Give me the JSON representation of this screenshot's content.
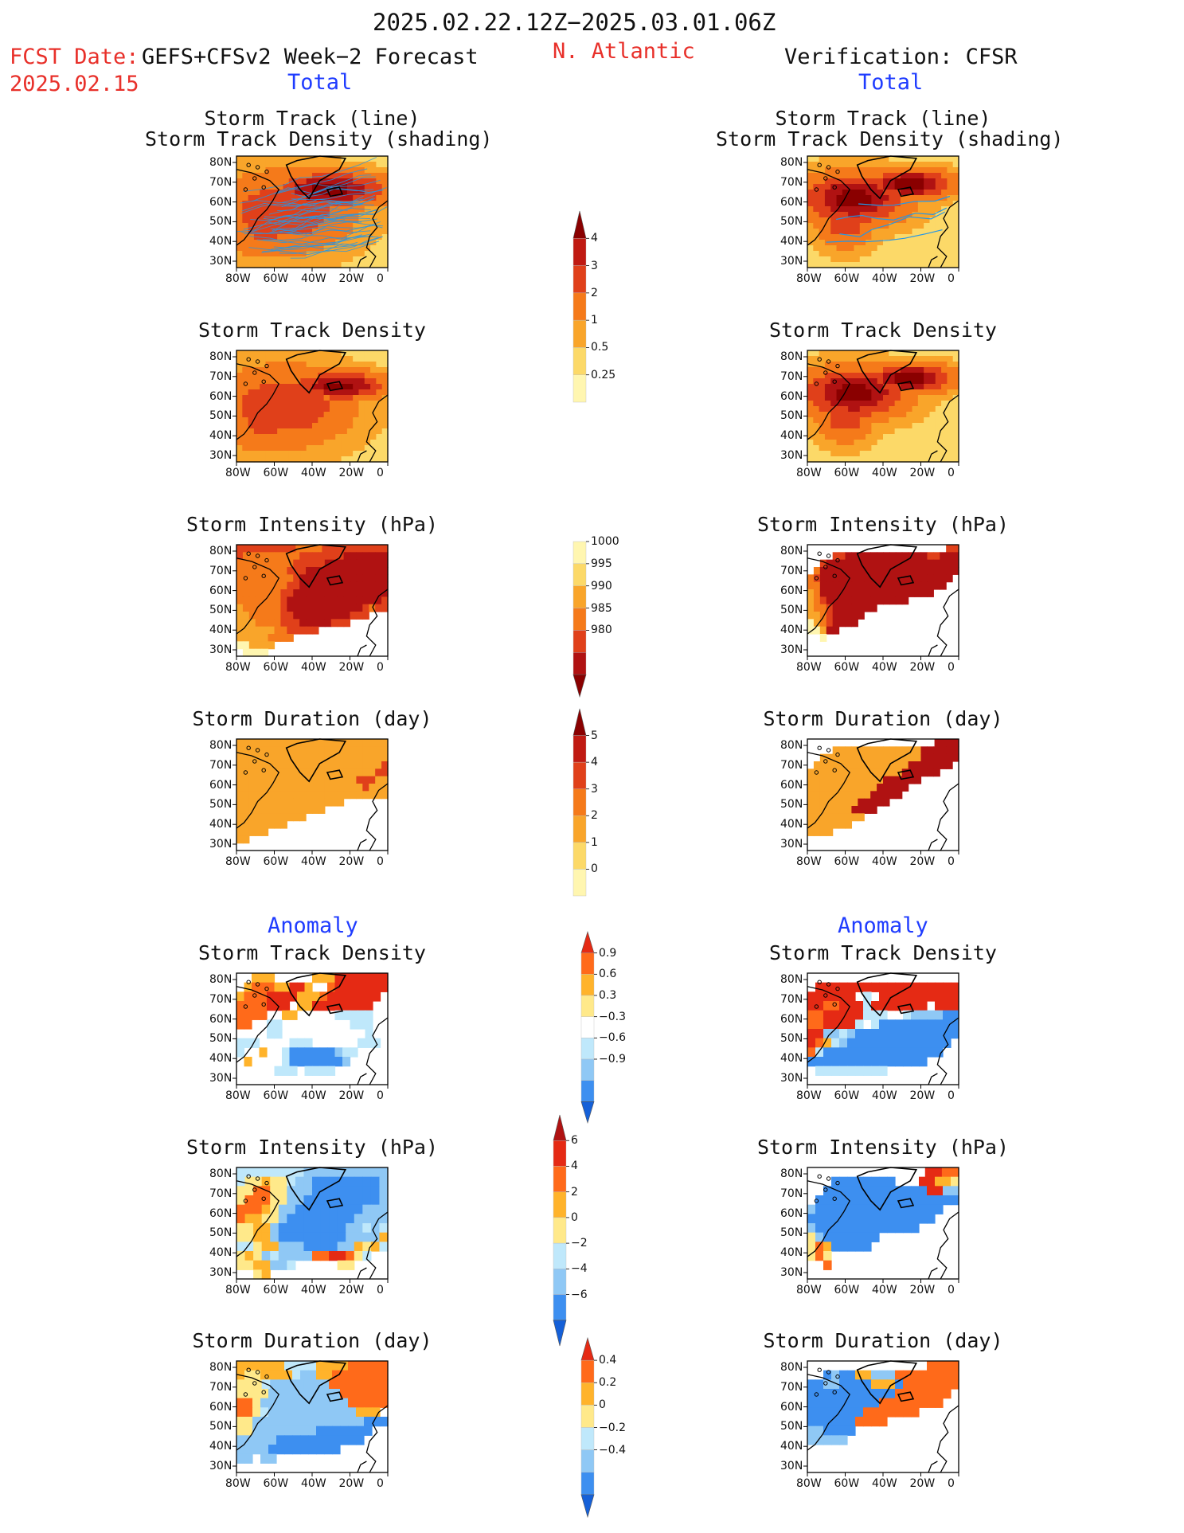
{
  "header": {
    "period": "2025.02.22.12Z−2025.03.01.06Z",
    "fcst_label": "FCST Date:",
    "fcst_model": "GEFS+CFSv2 Week−2 Forecast",
    "fcst_date": "2025.02.15",
    "region": "N. Atlantic",
    "verification": "Verification: CFSR",
    "left_total": "Total",
    "right_total": "Total",
    "left_anomaly": "Anomaly",
    "right_anomaly": "Anomaly"
  },
  "colors": {
    "text_red": "#e8302a",
    "text_blue": "#1f3cff",
    "total_scale": [
      "#fff6b0",
      "#fcd968",
      "#f9a52a",
      "#f57a1a",
      "#e0401a",
      "#b01212",
      "#8a0000"
    ],
    "anomaly_scale": [
      "#1560d8",
      "#3d8ff0",
      "#8fc8f5",
      "#bfe8fb",
      "#ffffff",
      "#ffe98a",
      "#ffb32b",
      "#ff6a1a",
      "#e52a14"
    ],
    "track_lines": "#2596e6"
  },
  "map_axes": {
    "lon_ticks": [
      "80W",
      "60W",
      "40W",
      "20W",
      "0"
    ],
    "lat_ticks": [
      "80N",
      "70N",
      "60N",
      "50N",
      "40N",
      "30N"
    ]
  },
  "colorbars": [
    {
      "name": "storm-track-density-colorbar",
      "labels": [
        "4",
        "3",
        "2",
        "1",
        "0.5",
        "0.25"
      ],
      "colors": [
        "#8a0000",
        "#c01a12",
        "#e0401a",
        "#f57a1a",
        "#f9a52a",
        "#fcd968",
        "#fff6b0"
      ],
      "arrow_top": true,
      "arrow_bottom": false
    },
    {
      "name": "storm-intensity-colorbar",
      "labels": [
        "1000",
        "995",
        "990",
        "985",
        "980"
      ],
      "colors": [
        "#fff6b0",
        "#fcd968",
        "#f9a52a",
        "#f57a1a",
        "#e0401a",
        "#b01212",
        "#8a0000"
      ],
      "arrow_top": false,
      "arrow_bottom": true
    },
    {
      "name": "storm-duration-colorbar",
      "labels": [
        "5",
        "4",
        "3",
        "2",
        "1",
        "0"
      ],
      "colors": [
        "#8a0000",
        "#c01a12",
        "#e0401a",
        "#f57a1a",
        "#f9a52a",
        "#fcd968",
        "#fff6b0"
      ],
      "arrow_top": true,
      "arrow_bottom": false
    },
    {
      "name": "density-anomaly-colorbar",
      "labels": [
        "0.9",
        "0.6",
        "0.3",
        "−0.3",
        "−0.6",
        "−0.9"
      ],
      "colors": [
        "#e52a14",
        "#ff6a1a",
        "#ffb32b",
        "#ffe98a",
        "#ffffff",
        "#bfe8fb",
        "#8fc8f5",
        "#3d8ff0",
        "#1560d8"
      ],
      "arrow_top": true,
      "arrow_bottom": true
    },
    {
      "name": "intensity-anomaly-colorbar",
      "labels": [
        "6",
        "4",
        "2",
        "0",
        "−2",
        "−4",
        "−6"
      ],
      "colors": [
        "#b01212",
        "#e52a14",
        "#ff6a1a",
        "#ffb32b",
        "#ffe98a",
        "#bfe8fb",
        "#8fc8f5",
        "#3d8ff0",
        "#1560d8"
      ],
      "arrow_top": true,
      "arrow_bottom": true
    },
    {
      "name": "duration-anomaly-colorbar",
      "labels": [
        "0.4",
        "0.2",
        "0",
        "−0.2",
        "−0.4"
      ],
      "colors": [
        "#e52a14",
        "#ff6a1a",
        "#ffb32b",
        "#ffe98a",
        "#bfe8fb",
        "#8fc8f5",
        "#3d8ff0",
        "#1560d8"
      ],
      "arrow_top": true,
      "arrow_bottom": true
    }
  ],
  "chart_data": [
    {
      "type": "heatmap",
      "name": "Storm Track (line) Storm Track Density (shading)",
      "title_lines": [
        "Storm Track (line)",
        "Storm Track Density (shading)"
      ],
      "column": "forecast",
      "overlay": "track lines",
      "lon_range": [
        -80,
        0
      ],
      "lat_range": [
        25,
        85
      ],
      "levels": [
        0.25,
        0.5,
        1,
        2,
        3,
        4
      ],
      "field_max": 4,
      "centers": [
        {
          "lon": -30,
          "lat": 67,
          "v": 4.2,
          "sx": 20,
          "sy": 6
        },
        {
          "lon": -55,
          "lat": 55,
          "v": 2.6,
          "sx": 24,
          "sy": 14
        },
        {
          "lon": -65,
          "lat": 45,
          "v": 2.0,
          "sx": 14,
          "sy": 10
        }
      ]
    },
    {
      "type": "heatmap",
      "name": "Storm Track (line) Storm Track Density (shading)",
      "title_lines": [
        "Storm Track (line)",
        "Storm Track Density (shading)"
      ],
      "column": "verification",
      "overlay": "track lines",
      "lon_range": [
        -80,
        0
      ],
      "lat_range": [
        25,
        85
      ],
      "levels": [
        0.25,
        0.5,
        1,
        2,
        3,
        4
      ],
      "field_max": 4,
      "centers": [
        {
          "lon": -25,
          "lat": 70,
          "v": 4.5,
          "sx": 14,
          "sy": 5
        },
        {
          "lon": -55,
          "lat": 62,
          "v": 4.2,
          "sx": 18,
          "sy": 9
        },
        {
          "lon": -60,
          "lat": 50,
          "v": 2.5,
          "sx": 10,
          "sy": 9
        }
      ]
    },
    {
      "type": "heatmap",
      "name": "Storm Track Density",
      "title_lines": [
        "Storm Track Density"
      ],
      "column": "forecast",
      "lon_range": [
        -80,
        0
      ],
      "lat_range": [
        25,
        85
      ],
      "levels": [
        0.25,
        0.5,
        1,
        2,
        3,
        4
      ],
      "field_max": 4,
      "centers": [
        {
          "lon": -25,
          "lat": 66,
          "v": 4.1,
          "sx": 16,
          "sy": 5
        },
        {
          "lon": -55,
          "lat": 55,
          "v": 2.6,
          "sx": 24,
          "sy": 14
        },
        {
          "lon": -65,
          "lat": 45,
          "v": 2.0,
          "sx": 14,
          "sy": 10
        }
      ]
    },
    {
      "type": "heatmap",
      "name": "Storm Track Density",
      "title_lines": [
        "Storm Track Density"
      ],
      "column": "verification",
      "lon_range": [
        -80,
        0
      ],
      "lat_range": [
        25,
        85
      ],
      "levels": [
        0.25,
        0.5,
        1,
        2,
        3,
        4
      ],
      "field_max": 4,
      "centers": [
        {
          "lon": -25,
          "lat": 70,
          "v": 4.5,
          "sx": 14,
          "sy": 5
        },
        {
          "lon": -55,
          "lat": 62,
          "v": 4.2,
          "sx": 18,
          "sy": 9
        },
        {
          "lon": -60,
          "lat": 50,
          "v": 2.5,
          "sx": 10,
          "sy": 9
        }
      ]
    },
    {
      "type": "heatmap",
      "name": "Storm Intensity (hPa)",
      "title_lines": [
        "Storm Intensity (hPa)"
      ],
      "column": "forecast",
      "lon_range": [
        -80,
        0
      ],
      "lat_range": [
        25,
        85
      ],
      "levels": [
        1000,
        995,
        990,
        985,
        980
      ],
      "units": "hPa",
      "note": "lower pressure = darker",
      "grid": [
        "dddddddddccccdddddddddd",
        "dcccccccccdddddddeeeeeee",
        "cccccccccdddddeeeeeeeeee",
        "ccccccccdddeeeeeeeeeeeee",
        "cccccccccdeeeeeeeeeeeeee",
        "ccccccccddeeeeeeeeeeeeee",
        "cccccccddeeeeeeeeeeeeeee",
        "cccccccdeeeeeeeeeeeeeeed",
        "bccccccdeeeeeeeeeeeedcdd",
        "bbcccccddeeeeeeeeeddd...",
        "bbbccccdddeeeeeddd......",
        "bbbbbbccddddd...........",
        "bbbbbcccc...............",
        "aabbbb..................",
        ".aaaa..................."
      ]
    },
    {
      "type": "heatmap",
      "name": "Storm Intensity (hPa)",
      "title_lines": [
        "Storm Intensity (hPa)"
      ],
      "column": "verification",
      "lon_range": [
        -80,
        0
      ],
      "lat_range": [
        25,
        85
      ],
      "levels": [
        1000,
        995,
        990,
        985,
        980
      ],
      "units": "hPa",
      "grid": [
        "......................dd",
        "....ddeeeeeeeeeeeeeddeee",
        "..deeeeeeeeeeeeeeeeeeeee",
        ".ceeeeeeeeeeeeeeeeeeeeee",
        "cdeeeeeeeeeeeeeeeeeeeee.",
        "cceeeeeeeeeeeeeeeeeeee..",
        "bceeeeeeeeeeeeeeeeee....",
        "bcdeeeeeeeeeeeee........",
        "bccdeeeeeee.............",
        "bbcdeeeee...............",
        "abcdeeee................",
        "aabee...................",
        "..a.....................",
        "........................",
        "........................"
      ]
    },
    {
      "type": "heatmap",
      "name": "Storm Duration (day)",
      "title_lines": [
        "Storm Duration (day)"
      ],
      "column": "forecast",
      "lon_range": [
        -80,
        0
      ],
      "lat_range": [
        25,
        85
      ],
      "levels": [
        0,
        1,
        2,
        3,
        4,
        5
      ],
      "grid": [
        "cccccccccccccccccccccccc",
        "cccccccccccccccccccccccc",
        "cccccccccccccccccccccccc",
        "cccccccccccccccccccccccd",
        "ccccccccccccccccccccccdd",
        "cccccccccccccccccccdddcc",
        "ccccccccccccccccccccdccc",
        "cccccccccccccccccccccccc",
        "ccccccccccccccccc.......",
        "cccccccccccccc..........",
        "ccccccccccc.............",
        "cccccccc................",
        "ccccc...................",
        "cc......................",
        "........................"
      ]
    },
    {
      "type": "heatmap",
      "name": "Storm Duration (day)",
      "title_lines": [
        "Storm Duration (day)"
      ],
      "column": "verification",
      "lon_range": [
        -80,
        0
      ],
      "lat_range": [
        25,
        85
      ],
      "levels": [
        0,
        1,
        2,
        3,
        4,
        5
      ],
      "grid": [
        ".....................eeee",
        "....cccccccccccccceeeeee",
        "..cccccccccccccccceeeeee",
        ".ccccccccccccccceeeeeee.",
        "ccccccccccccccceeeeee...",
        "cccccccccccceeeeee......",
        "ccccccccccceeeee........",
        "cccccccccceeeee.........",
        "cccccccceeeee...........",
        "ccccccceeee.............",
        "ccccccccc...............",
        "ccccccc.................",
        "cccc....................",
        "........................",
        "........................"
      ]
    },
    {
      "type": "heatmap",
      "name": "Storm Track Density",
      "title_lines": [
        "Storm Track Density"
      ],
      "column": "forecast",
      "section": "Anomaly",
      "lon_range": [
        -80,
        0
      ],
      "lat_range": [
        25,
        85
      ],
      "levels": [
        -0.9,
        -0.6,
        -0.3,
        0.3,
        0.6,
        0.9
      ],
      "grid": [
        "..ggg.....gggiiiiiii",
        ".ghhhggiig..hiiiiiii",
        "ghhhiiiiggghiiiiiii.",
        "hhhhiii.ggiiiiiiii..",
        "hhhh..gg.....ddddd..",
        "hh..dd.........ddd..",
        "....dd...........d..",
        "ddd....ddd......ddd.",
        "d..g..dbbbbbbcdd....",
        ".g....dbbbbbbbc.....",
        ".....ddd.dddd.......",
        "...................."
      ]
    },
    {
      "type": "heatmap",
      "name": "Storm Track Density",
      "title_lines": [
        "Storm Track Density"
      ],
      "column": "verification",
      "section": "Anomaly",
      "lon_range": [
        -80,
        0
      ],
      "lat_range": [
        25,
        85
      ],
      "levels": [
        -0.9,
        -0.6,
        -0.3,
        0.3,
        0.6,
        0.9
      ],
      "grid": [
        "...................",
        ".iiiiiiiiiiiiiiiiii",
        "iiiiii.d.iiiiiiiiii",
        "iihhiiidiiiiiii.iii",
        "hhiiiiiddd..dccccbb",
        "hhiiiid.dbbbbbbbbbb",
        "iiccdcbbbbbbbbbbbbb",
        "ihgdcbbbbbbbbbbbbb.",
        "hdbbbbbbbbbbbbbbb..",
        "bbbbbbbbbbbbbbb....",
        ".ddddddddd.........",
        "..................."
      ]
    },
    {
      "type": "heatmap",
      "name": "Storm Intensity (hPa)",
      "title_lines": [
        "Storm Intensity (hPa)"
      ],
      "column": "forecast",
      "section": "Anomaly",
      "lon_range": [
        -80,
        0
      ],
      "lat_range": [
        25,
        85
      ],
      "levels": [
        -6,
        -4,
        -2,
        0,
        2,
        4,
        6
      ],
      "grid": [
        "ddddddddcccccccccc",
        "dffgffdccbbbbbbbbc",
        "ffhhffcccbbbbbbbbc",
        "fhhhffccbbbbbbbbbc",
        "hhhgfccbbbbbbbbccc",
        "hggffcbbbbbbbbcccc",
        "ffggcbbbbbbbbccdcd",
        "ffggcbbbbbbbbccccg",
        "ddfggcccbbbbccgfgd",
        "fgfcdcccchhiihfd..",
        "ffggccd.....ff....",
        "..fg.............."
      ]
    },
    {
      "type": "heatmap",
      "name": "Storm Intensity (hPa)",
      "title_lines": [
        "Storm Intensity (hPa)"
      ],
      "column": "verification",
      "section": "Anomaly",
      "lon_range": [
        -80,
        0
      ],
      "lat_range": [
        25,
        85
      ],
      "levels": [
        -6,
        -4,
        -2,
        0,
        2,
        4,
        6
      ],
      "grid": [
        "..............iihh",
        "...bbbbbbbb...iiggf",
        "..bbbbbbbbbbbbbiicc",
        ".bbbbbbbbbbbbbbbbbb",
        "cbbbbbbbbbbbbbbbb..",
        "bbbbbbbbbbbbbbbb...",
        "cbbbbbbbbbbbbb.....",
        "fcbbbbbbb..........",
        "fhgbbbbb...........",
        "fhf................",
        "..h................",
        "..................."
      ]
    },
    {
      "type": "heatmap",
      "name": "Storm Duration (day)",
      "title_lines": [
        "Storm Duration (day)"
      ],
      "column": "forecast",
      "section": "Anomaly",
      "lon_range": [
        -80,
        0
      ],
      "lat_range": [
        25,
        85
      ],
      "levels": [
        -0.4,
        -0.2,
        0,
        0.2,
        0.4
      ],
      "grid": [
        "ggggggddddgggghhhhh",
        "gffggggdccgghhhhhhh",
        "fffdccccccchhhhhhh",
        "ffffccccccccchhhhhh",
        "hhfccccccccccchhhhh",
        "hhfdcccccccccccggg.",
        "ffccccccccccccccbbb",
        "ffccccccccbbbbbbb..",
        "cccccbbbbbbbbbbb...",
        "ccccbbbbbbbbb......",
        "cc.cc..............",
        "..................."
      ]
    },
    {
      "type": "heatmap",
      "name": "Storm Duration (day)",
      "title_lines": [
        "Storm Duration (day)"
      ],
      "column": "verification",
      "section": "Anomaly",
      "lon_range": [
        -80,
        0
      ],
      "lat_range": [
        25,
        85
      ],
      "levels": [
        -0.4,
        -0.2,
        0,
        0.2,
        0.4
      ],
      "grid": [
        "...............hhhh",
        "..bcbbggccchhhhhhhh",
        "bbccbbbbgggbhhhhhhh",
        "bbbbbbbbbbbhhhhhhh.",
        "bbbbbbbbbhhhhhhhh..",
        "bbbbbbbhhhhhhh.....",
        "bbbbbbhhhh.........",
        "ccbbbb.............",
        "ccccc..............",
        "...................",
        "...................",
        "..................."
      ]
    }
  ]
}
